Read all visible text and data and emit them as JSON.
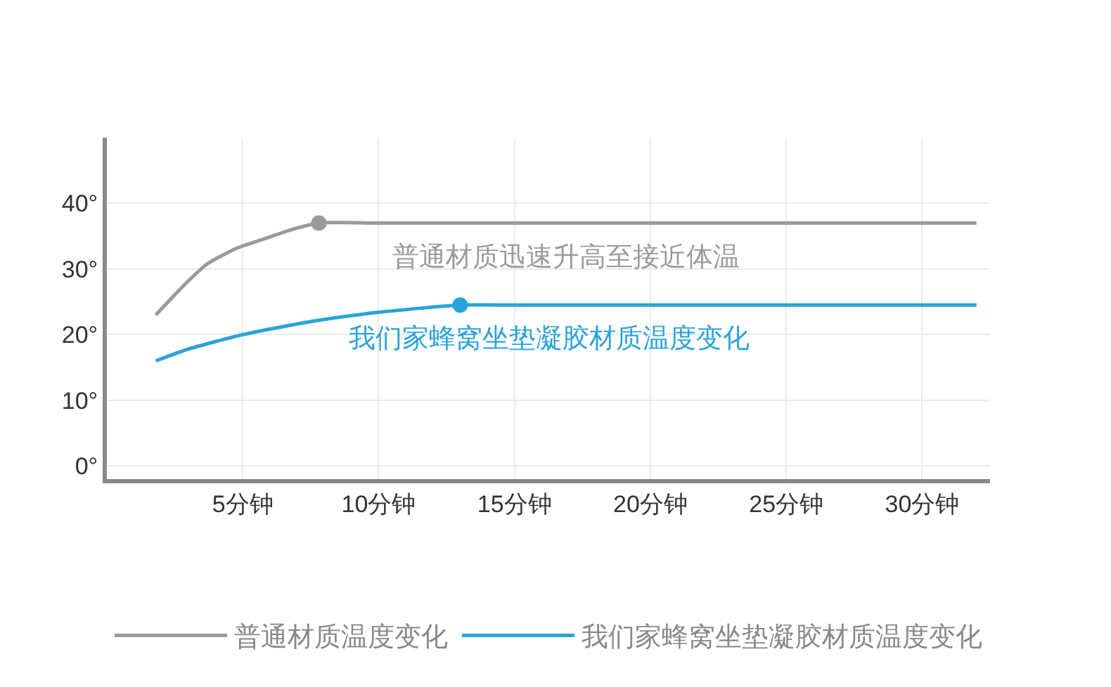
{
  "chart_data": {
    "type": "line",
    "x": [
      1.8,
      3,
      3.7,
      4.8,
      5.8,
      6.8,
      7.8,
      10,
      15,
      20,
      25,
      32
    ],
    "series": [
      {
        "name": "普通材质温度变化",
        "color": "#9a9a9a",
        "values": [
          23,
          28.2,
          30.8,
          33.2,
          34.6,
          36,
          37,
          37,
          37,
          37,
          37,
          37
        ]
      },
      {
        "name": "我们家蜂窝坐垫凝胶材质温度变化",
        "color": "#29a3dc",
        "x": [
          1.8,
          3,
          5,
          7.5,
          10,
          13,
          15,
          20,
          25,
          32
        ],
        "values": [
          16,
          17.8,
          20,
          22,
          23.4,
          24.5,
          24.5,
          24.5,
          24.5,
          24.5
        ]
      },
      {
        "type": "scatter",
        "color": "#9a9a9a",
        "x": [
          7.8
        ],
        "values": [
          37
        ]
      },
      {
        "type": "scatter",
        "color": "#29a3dc",
        "x": [
          13
        ],
        "values": [
          24.5
        ]
      }
    ],
    "xlim": [
      0,
      32.5
    ],
    "xticks": [
      {
        "value": 5,
        "label": "5分钟"
      },
      {
        "value": 10,
        "label": "10分钟"
      },
      {
        "value": 15,
        "label": "15分钟"
      },
      {
        "value": 20,
        "label": "20分钟"
      },
      {
        "value": 25,
        "label": "25分钟"
      },
      {
        "value": 30,
        "label": "30分钟"
      }
    ],
    "ylim": [
      -2,
      50
    ],
    "yticks": [
      {
        "value": 0,
        "label": "0°"
      },
      {
        "value": 10,
        "label": "10°"
      },
      {
        "value": 20,
        "label": "20°"
      },
      {
        "value": 30,
        "label": "30°"
      },
      {
        "value": 40,
        "label": "40°"
      }
    ],
    "annotations": [
      "普通材质迅速升高至接近体温",
      "我们家蜂窝坐垫凝胶材质温度变化"
    ],
    "grid": true,
    "legend": "bottom",
    "line_style": "solid"
  }
}
